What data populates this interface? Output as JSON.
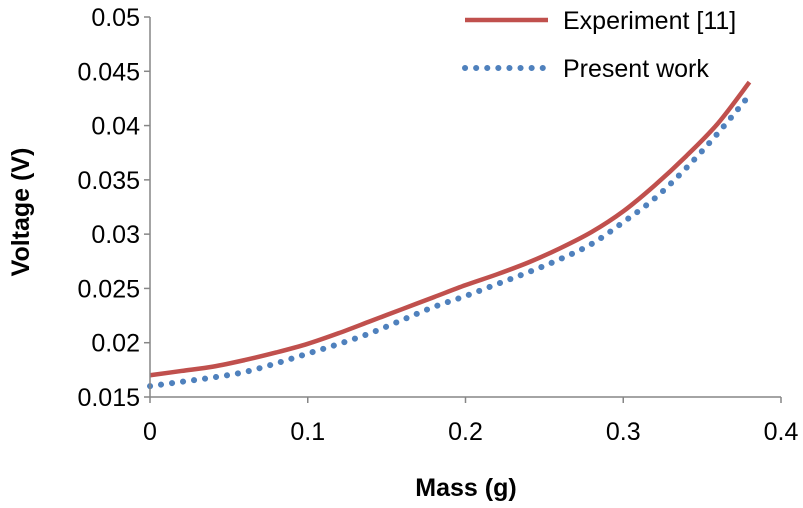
{
  "chart_data": {
    "type": "line",
    "title": "",
    "xlabel": "Mass (g)",
    "ylabel": "Voltage (V)",
    "xlim": [
      0,
      0.4
    ],
    "ylim": [
      0.015,
      0.05
    ],
    "xticks": [
      0,
      0.1,
      0.2,
      0.3,
      0.4
    ],
    "xtick_labels": [
      "0",
      "0.1",
      "0.2",
      "0.3",
      "0.4"
    ],
    "yticks": [
      0.015,
      0.02,
      0.025,
      0.03,
      0.035,
      0.04,
      0.045,
      0.05
    ],
    "ytick_labels": [
      "0.015",
      "0.02",
      "0.025",
      "0.03",
      "0.035",
      "0.04",
      "0.045",
      "0.05"
    ],
    "grid": false,
    "legend_position": "top-right",
    "series": [
      {
        "name": "Experiment [11]",
        "style": "solid",
        "color": "#C0504D",
        "x": [
          0,
          0.02,
          0.04,
          0.06,
          0.08,
          0.1,
          0.12,
          0.14,
          0.16,
          0.18,
          0.2,
          0.22,
          0.24,
          0.26,
          0.28,
          0.3,
          0.32,
          0.34,
          0.36,
          0.38
        ],
        "y": [
          0.017,
          0.0174,
          0.0178,
          0.0184,
          0.0191,
          0.0199,
          0.0209,
          0.022,
          0.0231,
          0.0242,
          0.0253,
          0.0263,
          0.0274,
          0.0287,
          0.0302,
          0.0321,
          0.0345,
          0.0372,
          0.0402,
          0.044
        ]
      },
      {
        "name": "Present work",
        "style": "dotted",
        "color": "#4F81BD",
        "x": [
          0,
          0.02,
          0.04,
          0.06,
          0.08,
          0.1,
          0.12,
          0.14,
          0.16,
          0.18,
          0.2,
          0.22,
          0.24,
          0.26,
          0.28,
          0.3,
          0.32,
          0.34,
          0.36,
          0.38
        ],
        "y": [
          0.016,
          0.0164,
          0.0168,
          0.0173,
          0.0181,
          0.019,
          0.0199,
          0.0209,
          0.0221,
          0.0233,
          0.0243,
          0.0254,
          0.0265,
          0.0277,
          0.0291,
          0.0311,
          0.0333,
          0.0361,
          0.0393,
          0.0428
        ]
      }
    ]
  }
}
